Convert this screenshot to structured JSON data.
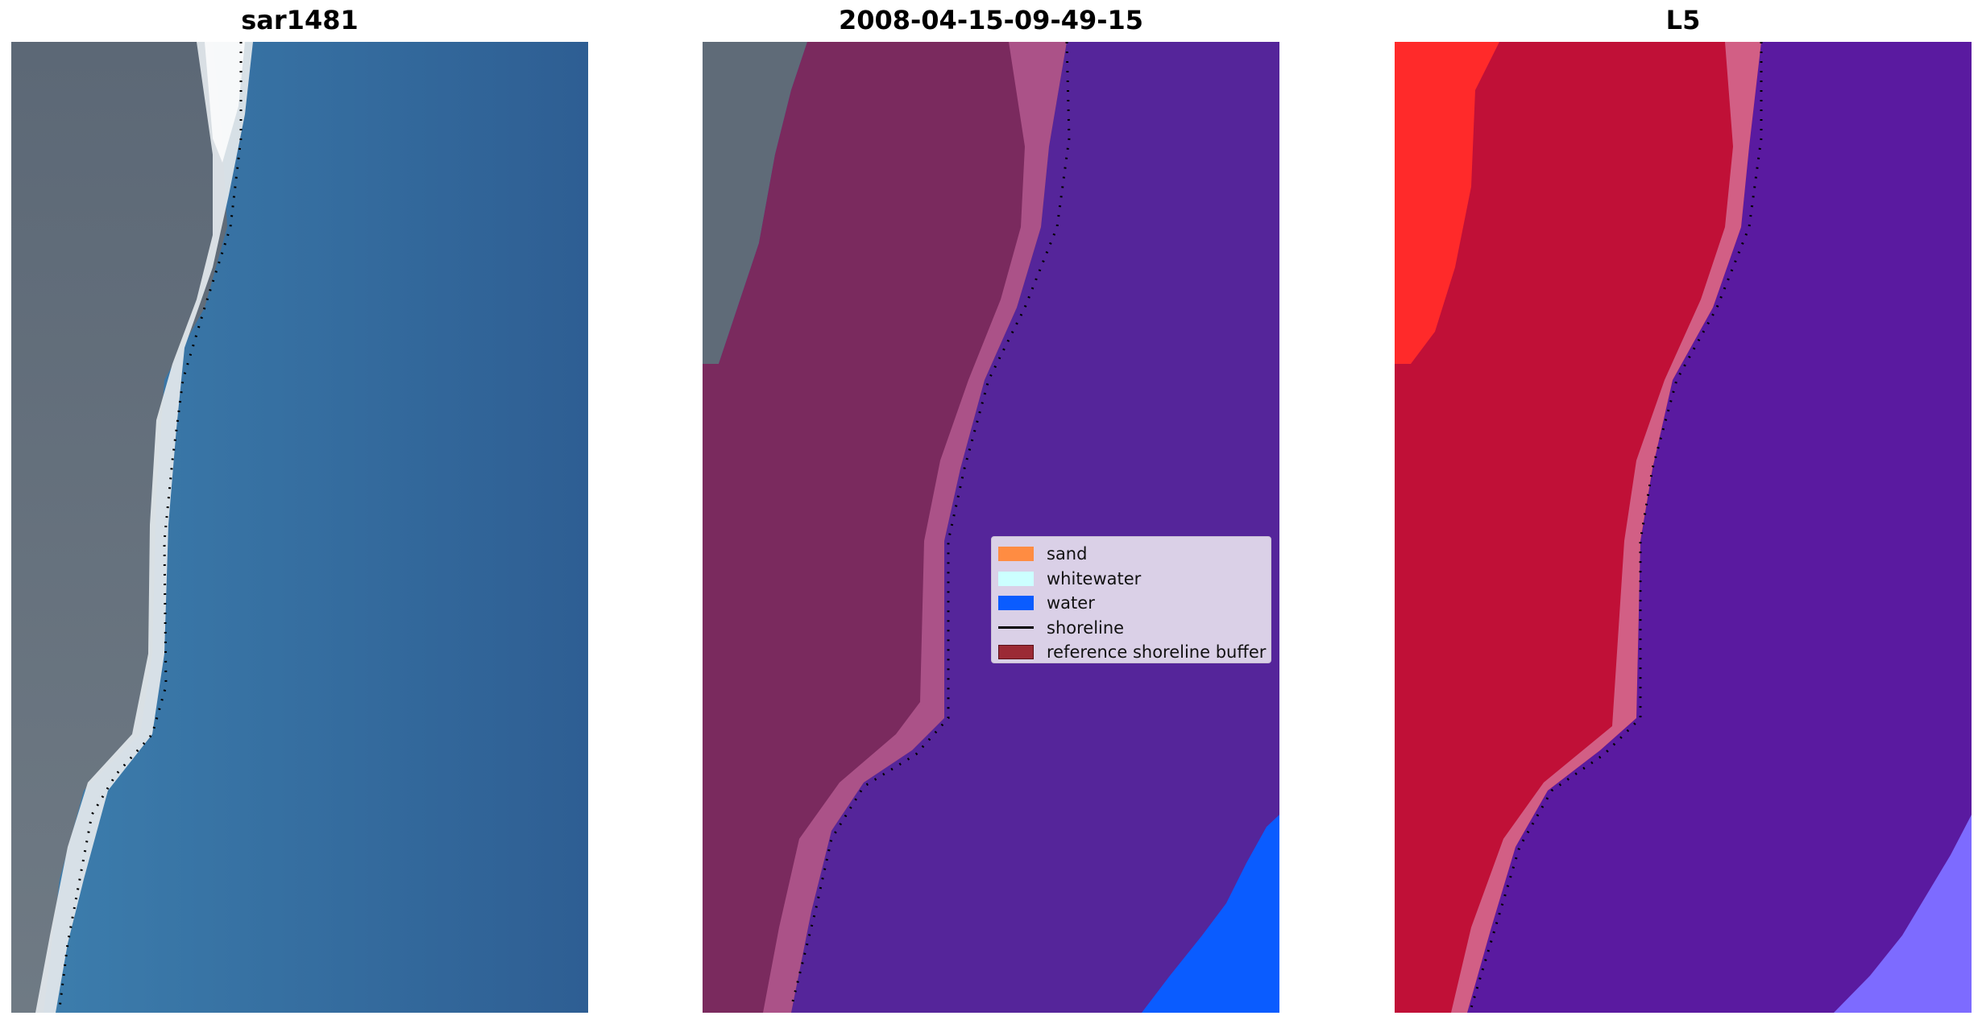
{
  "panels": [
    {
      "title": "sar1481"
    },
    {
      "title": "2008-04-15-09-49-15"
    },
    {
      "title": "L5"
    }
  ],
  "legend": {
    "items": [
      {
        "label": "sand",
        "kind": "patch",
        "color": "#ff8c42"
      },
      {
        "label": "whitewater",
        "kind": "patch",
        "color": "#ccffff"
      },
      {
        "label": "water",
        "kind": "patch",
        "color": "#0a5cff"
      },
      {
        "label": "shoreline",
        "kind": "line",
        "color": "#000000"
      },
      {
        "label": "reference shoreline buffer",
        "kind": "patch",
        "color": "#9b2a35"
      }
    ]
  },
  "colors": {
    "rgb_land": "#5f6b78",
    "rgb_water": "#2f6a9c",
    "rgb_surf": "#eef2f4",
    "classified_land_overlay": "#7a2a5e",
    "classified_water": "#55259a",
    "classified_water_pixels": "#0a5cff",
    "swir_land": "#c01037",
    "swir_water": "#5a1aa0",
    "swir_bright": "#ff2a2a"
  }
}
